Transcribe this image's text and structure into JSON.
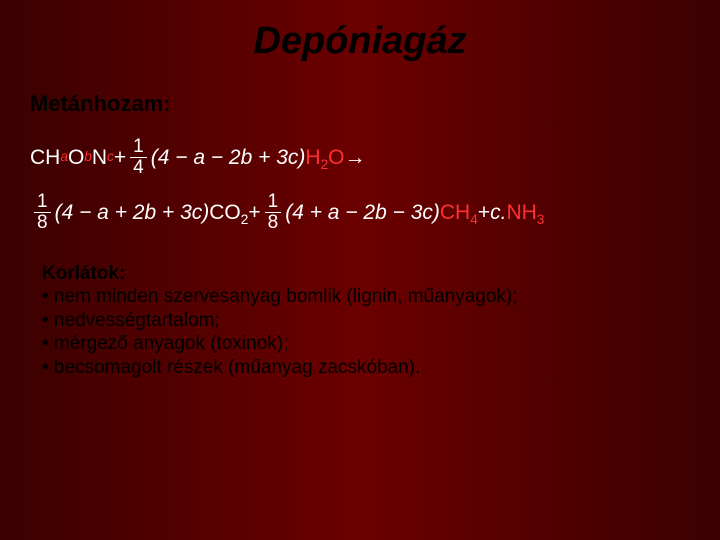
{
  "colors": {
    "background_left": "#3a0000",
    "background_center": "#6b0000",
    "background_right": "#3a0000",
    "title_color": "#000000",
    "section_color": "#000000",
    "equation_text": "#ffffff",
    "highlight_red": "#ff3030",
    "bullets_color": "#000000"
  },
  "typography": {
    "title_fontsize": 38,
    "section_fontsize": 22,
    "equation_fontsize": 21,
    "bullets_fontsize": 19,
    "font_family": "Arial"
  },
  "title": "Depóniagáz",
  "section_heading": "Metánhozam:",
  "equation": {
    "line1": {
      "lhs_variable": "CH",
      "lhs_sub_a": "a",
      "lhs_O": "O",
      "lhs_sub_b": "b",
      "lhs_N": "N",
      "lhs_sub_c": "c",
      "plus": " + ",
      "frac1_num": "1",
      "frac1_den": "4",
      "paren1": "(4 − a − 2b + 3c)",
      "water": "H",
      "water_sub": "2",
      "water_O": "O",
      "arrow": " →"
    },
    "line2": {
      "frac2_num": "1",
      "frac2_den": "8",
      "paren2": "(4 − a + 2b + 3c)",
      "co2_C": "CO",
      "co2_sub": "2",
      "plus2": " + ",
      "frac3_num": "1",
      "frac3_den": "8",
      "paren3": "(4 + a − 2b − 3c)",
      "ch4_C": "CH",
      "ch4_sub": "4",
      "plus3": " + ",
      "c_coef": "c.",
      "nh3_N": "NH",
      "nh3_sub": "3"
    }
  },
  "limits_heading": "Korlátok:",
  "bullets": [
    "• nem minden szervesanyag bomlik (lignin, műanyagok);",
    "• nedvességtartalom;",
    "• mérgező anyagok (toxinok);",
    "• becsomagolt részek (műanyag zacskóban)."
  ]
}
